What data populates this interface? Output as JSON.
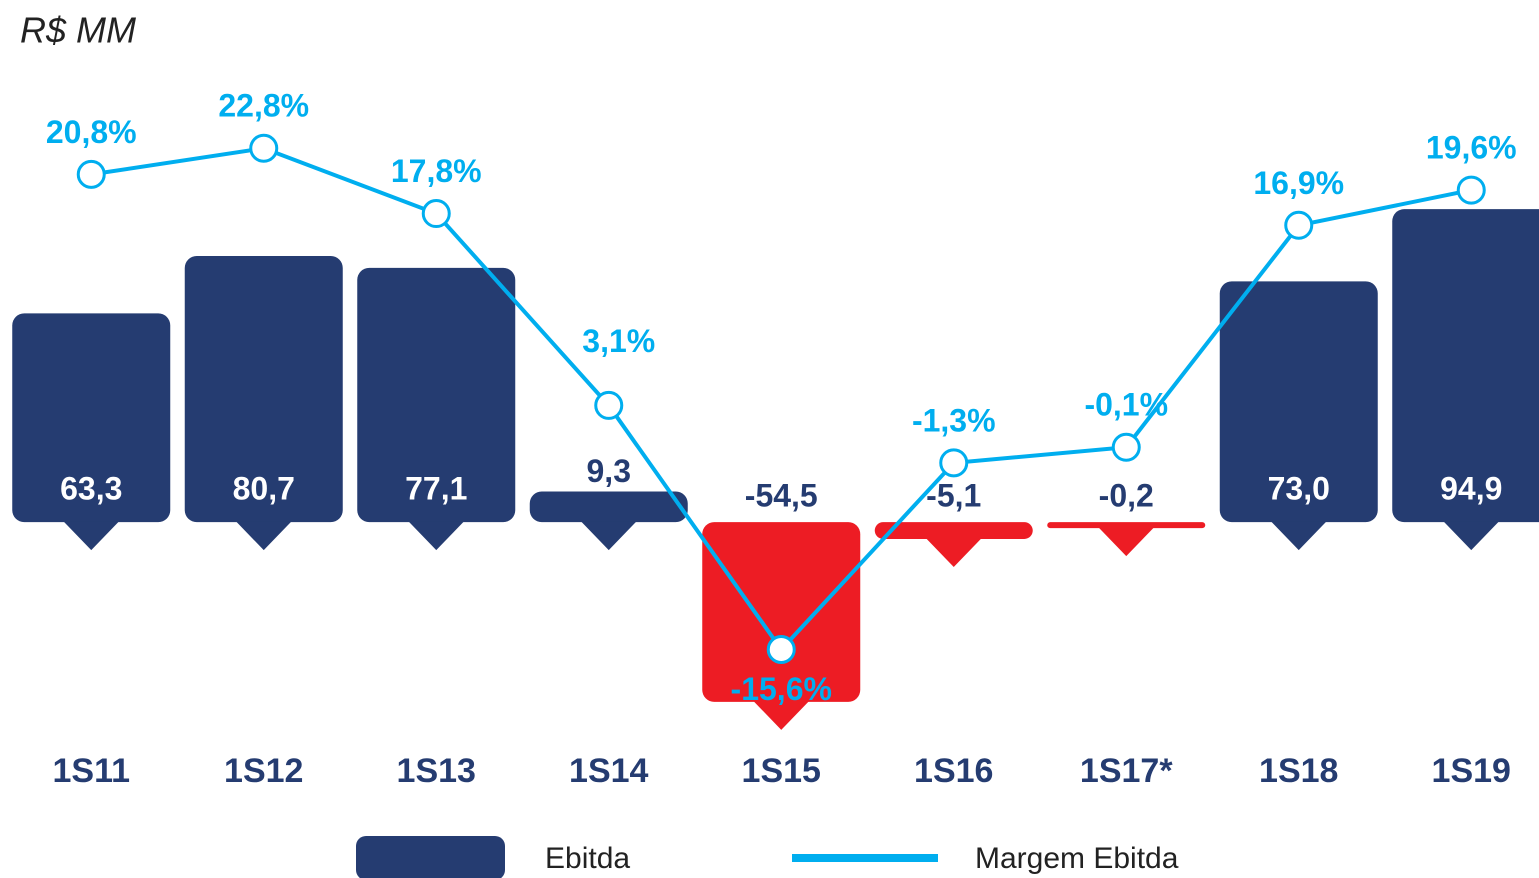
{
  "chart_data": {
    "type": "bar",
    "title": "R$ MM",
    "categories": [
      "1S11",
      "1S12",
      "1S13",
      "1S14",
      "1S15",
      "1S16",
      "1S17*",
      "1S18",
      "1S19"
    ],
    "series": [
      {
        "name": "Ebitda",
        "type": "bar",
        "color": "#253c71",
        "colors": [
          "#253c71",
          "#253c71",
          "#253c71",
          "#253c71",
          "#ed1c24",
          "#ed1c24",
          "#ed1c24",
          "#253c71",
          "#253c71"
        ],
        "values": [
          63.3,
          80.7,
          77.1,
          9.3,
          -54.5,
          -5.1,
          -0.2,
          73.0,
          94.9
        ],
        "value_labels": [
          "63,3",
          "80,7",
          "77,1",
          "9,3",
          "-54,5",
          "-5,1",
          "-0,2",
          "73,0",
          "94,9"
        ]
      },
      {
        "name": "Margem Ebitda",
        "type": "line",
        "axis": "y2",
        "color": "#00aeef",
        "values": [
          20.8,
          22.8,
          17.8,
          3.1,
          -15.6,
          -1.3,
          -0.1,
          16.9,
          19.6
        ],
        "value_labels": [
          "20,8%",
          "22,8%",
          "17,8%",
          "3,1%",
          "-15,6%",
          "-1,3%",
          "-0,1%",
          "16,9%",
          "19,6%"
        ]
      }
    ],
    "ylim": [
      -60,
      128
    ],
    "y2lim": [
      -21,
      26.5
    ],
    "legend": "bottom"
  }
}
